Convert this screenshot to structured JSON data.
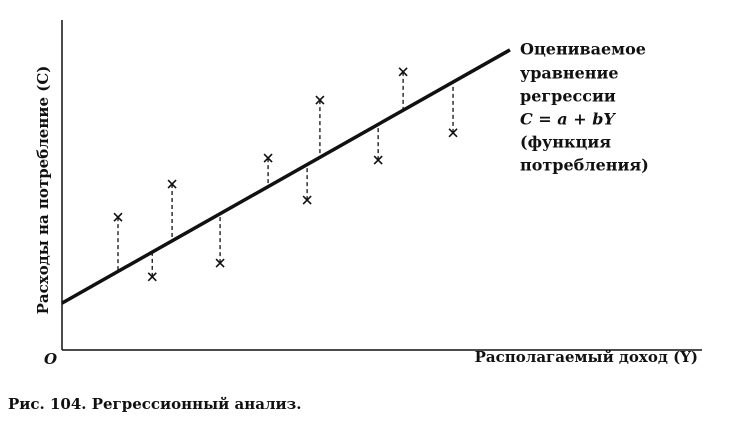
{
  "chart_data": {
    "type": "scatter",
    "y_label": "Расходы на потребление (C)",
    "x_label": "Располагаемый доход (Y)",
    "origin_label": "O",
    "annotation": [
      "Оцениваемое",
      "уравнение",
      "регрессии",
      "C = a + bY",
      "(функция",
      "потребления)"
    ],
    "caption": "Рис. 104. Регрессионный анализ.",
    "xlim": [
      0,
      100
    ],
    "ylim": [
      0,
      100
    ],
    "color": "#111111",
    "series": [
      {
        "type": "scatter",
        "x": [
          8.75,
          14.1,
          17.2,
          24.7,
          32.2,
          38.3,
          40.3,
          49.4,
          53.3,
          61.1
        ],
        "values": [
          40.5,
          22.3,
          50.6,
          26.5,
          58.5,
          45.7,
          76.2,
          57.9,
          84.8,
          66.2
        ]
      },
      {
        "type": "line",
        "x": [
          0,
          70
        ],
        "values": [
          14.3,
          91.5
        ]
      }
    ]
  }
}
